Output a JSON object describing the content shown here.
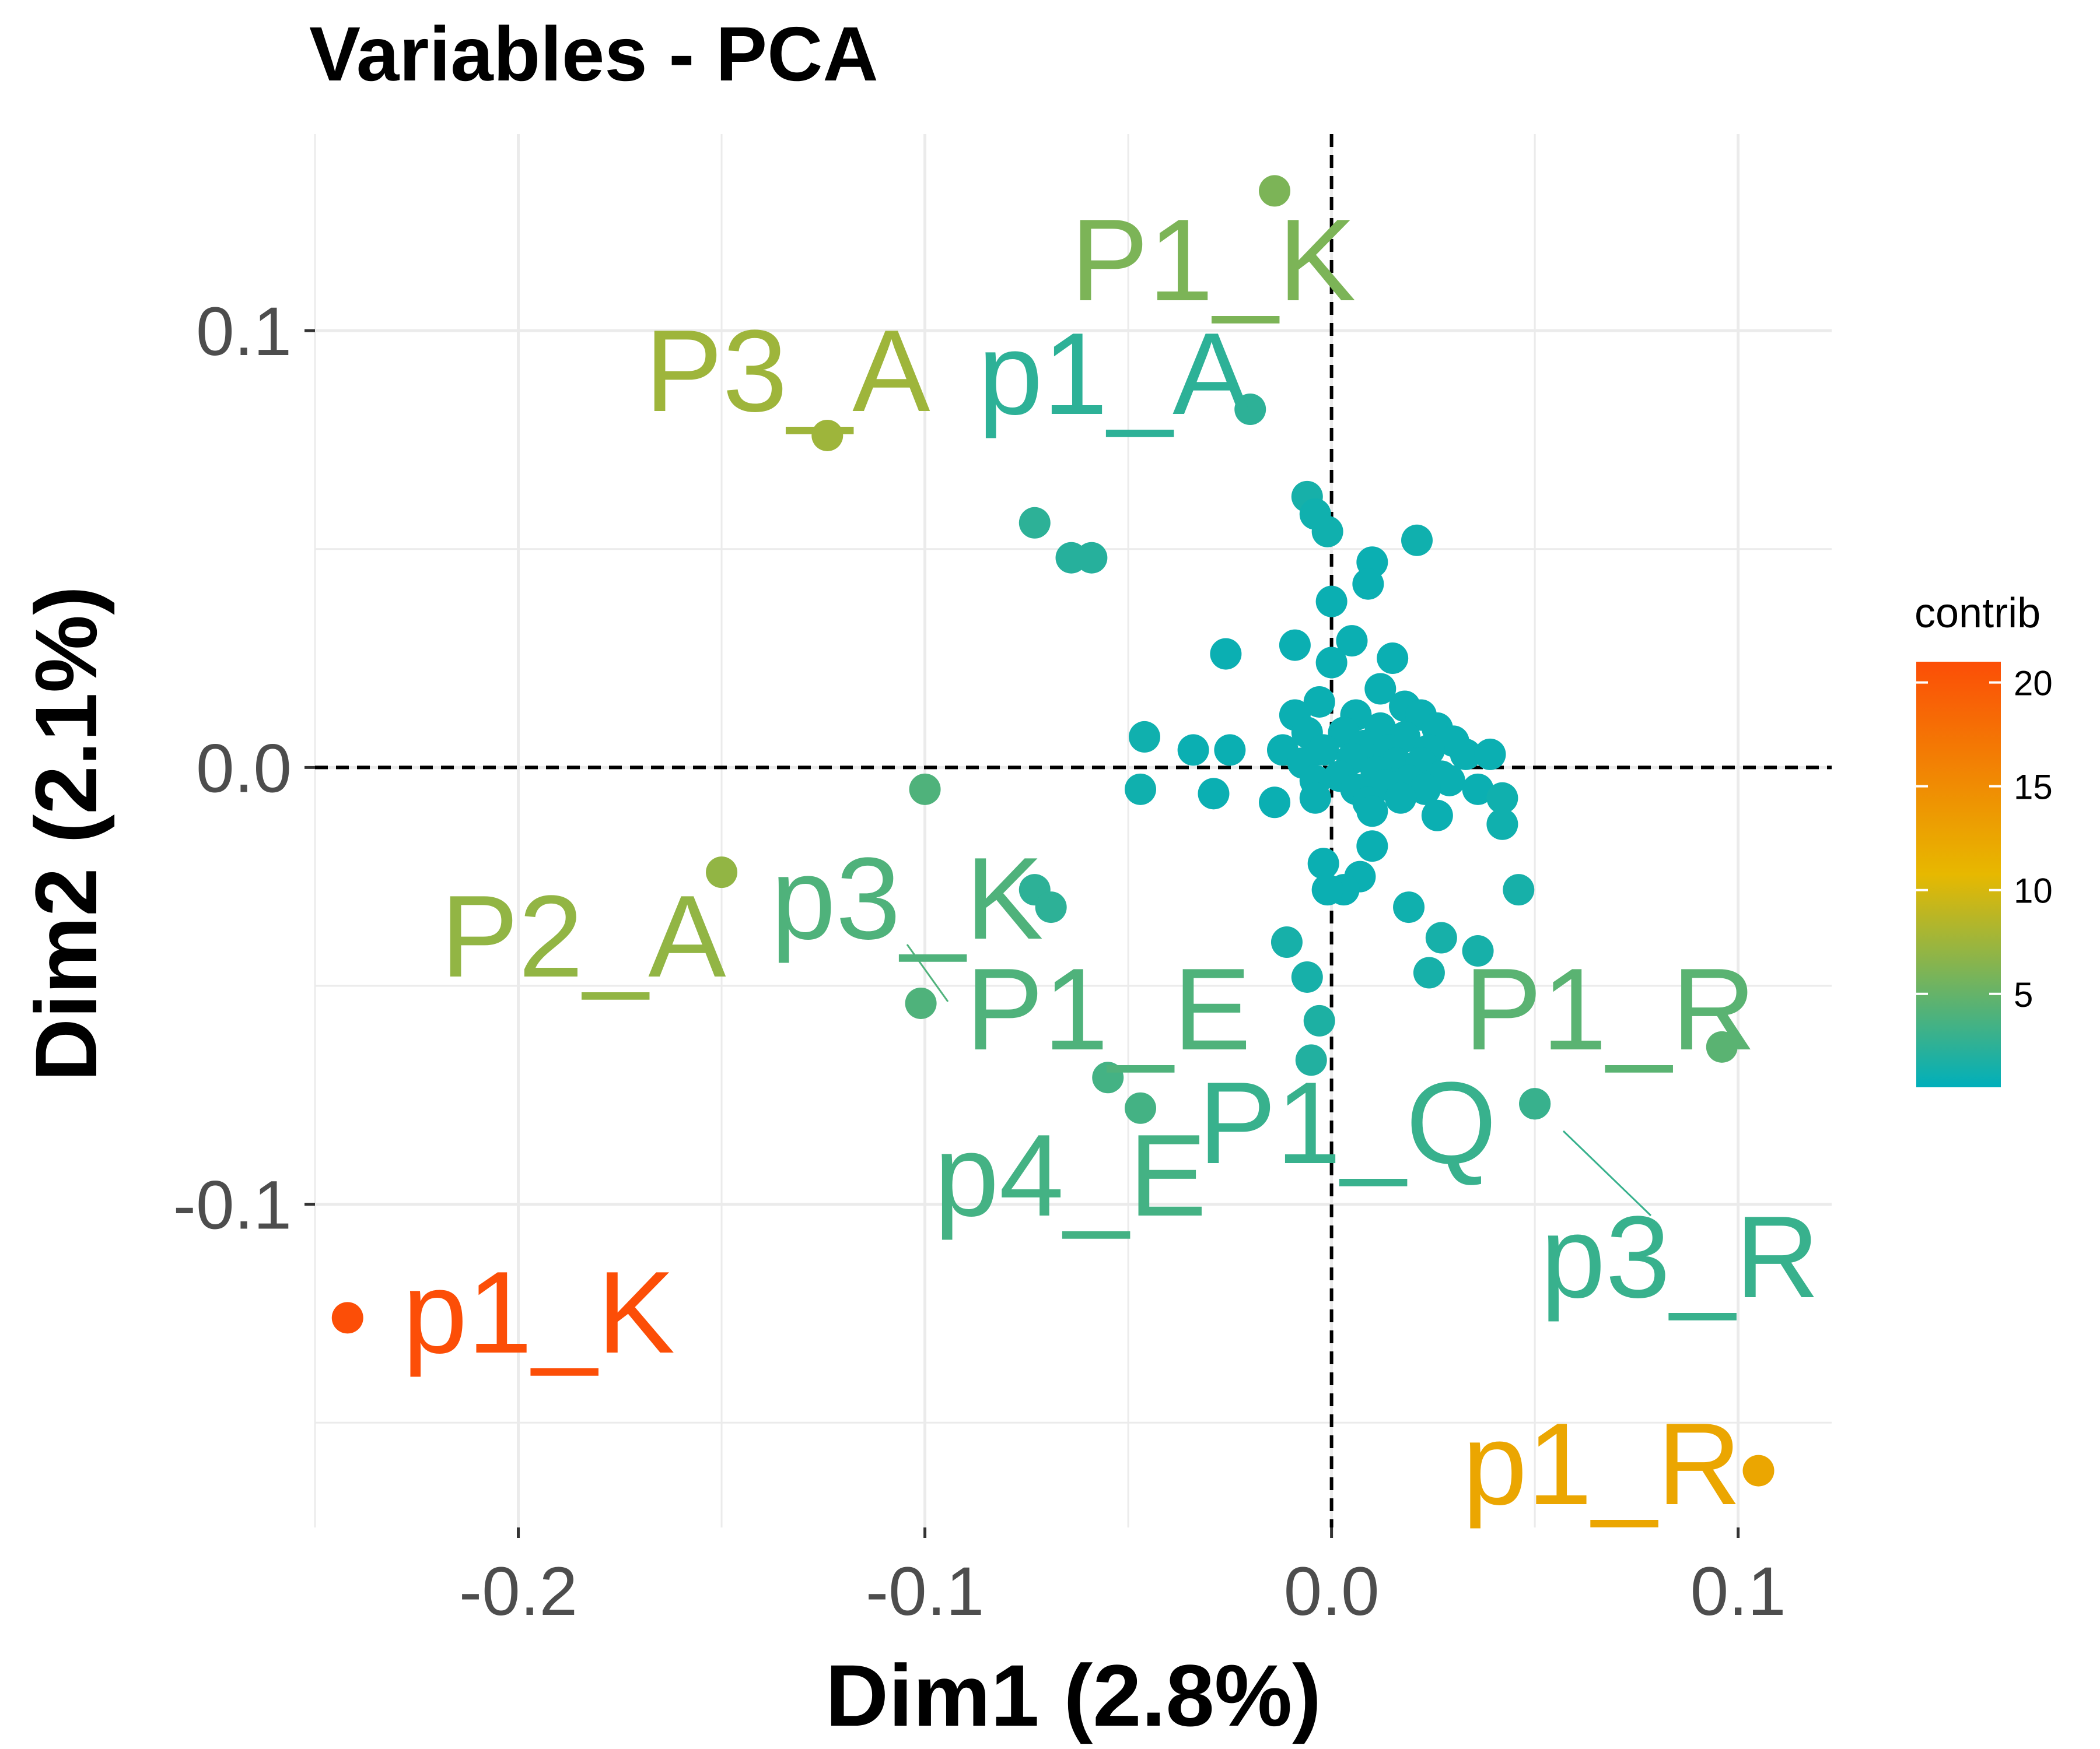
{
  "chart_data": {
    "type": "scatter",
    "title": "Variables - PCA",
    "xlabel": "Dim1 (2.8%)",
    "ylabel": "Dim2 (2.1%)",
    "xlim": [
      -0.25,
      0.123
    ],
    "ylim": [
      -0.174,
      0.145
    ],
    "x_ticks": [
      -0.2,
      -0.1,
      0.0,
      0.1
    ],
    "x_tick_labels": [
      "-0.2",
      "-0.1",
      "0.0",
      "0.1"
    ],
    "y_ticks": [
      -0.1,
      0.0,
      0.1
    ],
    "y_tick_labels": [
      "-0.1",
      "0.0",
      "0.1"
    ],
    "grid": true,
    "reference_lines": {
      "x": 0,
      "y": 0,
      "style": "dashed"
    },
    "legend": {
      "title": "contrib",
      "placement": "right",
      "range": [
        0.5,
        21
      ],
      "ticks": [
        5,
        10,
        15,
        20
      ],
      "tick_labels": [
        "5",
        "10",
        "15",
        "20"
      ],
      "gradient_colors": [
        "#00AFBB",
        "#E7B800",
        "#FC4E07"
      ]
    },
    "labeled_points": [
      {
        "label": "p1_K",
        "x": -0.242,
        "y": -0.126,
        "contrib": 21
      },
      {
        "label": "p1_R",
        "x": 0.105,
        "y": -0.161,
        "contrib": 12.5
      },
      {
        "label": "P3_A",
        "x": -0.124,
        "y": 0.076,
        "contrib": 7.5
      },
      {
        "label": "P2_A",
        "x": -0.15,
        "y": -0.024,
        "contrib": 7
      },
      {
        "label": "P1_K",
        "x": -0.014,
        "y": 0.132,
        "contrib": 6
      },
      {
        "label": "p1_A",
        "x": -0.02,
        "y": 0.082,
        "contrib": 2.5
      },
      {
        "label": "p3_K",
        "x": -0.1,
        "y": -0.005,
        "contrib": 4
      },
      {
        "label": "P1_E",
        "x": -0.101,
        "y": -0.054,
        "contrib": 4
      },
      {
        "label": "p4_E",
        "x": -0.047,
        "y": -0.078,
        "contrib": 3.5
      },
      {
        "label": "P1_R",
        "x": 0.096,
        "y": -0.064,
        "contrib": 4.5
      },
      {
        "label": "P1_Q",
        "x": 0.05,
        "y": -0.077,
        "contrib": 3
      },
      {
        "label": "p3_R",
        "x": 0.05,
        "y": -0.077,
        "contrib": 3
      }
    ],
    "other_points": [
      {
        "x": -0.073,
        "y": 0.056,
        "contrib": 2.5
      },
      {
        "x": -0.064,
        "y": 0.048,
        "contrib": 2.2
      },
      {
        "x": -0.059,
        "y": 0.048,
        "contrib": 2.2
      },
      {
        "x": -0.073,
        "y": -0.028,
        "contrib": 2.5
      },
      {
        "x": -0.069,
        "y": -0.032,
        "contrib": 2.5
      },
      {
        "x": -0.055,
        "y": -0.071,
        "contrib": 3.5
      },
      {
        "x": -0.006,
        "y": 0.062,
        "contrib": 1.5
      },
      {
        "x": -0.004,
        "y": 0.058,
        "contrib": 1.2
      },
      {
        "x": -0.001,
        "y": 0.054,
        "contrib": 1.2
      },
      {
        "x": 0.021,
        "y": 0.052,
        "contrib": 1.2
      },
      {
        "x": 0.01,
        "y": 0.047,
        "contrib": 1
      },
      {
        "x": 0.009,
        "y": 0.042,
        "contrib": 1
      },
      {
        "x": 0,
        "y": 0.038,
        "contrib": 1
      },
      {
        "x": -0.009,
        "y": 0.028,
        "contrib": 1
      },
      {
        "x": 0.005,
        "y": 0.029,
        "contrib": 1
      },
      {
        "x": -0.026,
        "y": 0.026,
        "contrib": 1
      },
      {
        "x": 0,
        "y": 0.024,
        "contrib": 1
      },
      {
        "x": 0.015,
        "y": 0.025,
        "contrib": 1
      },
      {
        "x": 0.012,
        "y": 0.018,
        "contrib": 1
      },
      {
        "x": 0.018,
        "y": 0.014,
        "contrib": 1
      },
      {
        "x": 0.022,
        "y": 0.012,
        "contrib": 1
      },
      {
        "x": 0.006,
        "y": 0.012,
        "contrib": 1
      },
      {
        "x": -0.003,
        "y": 0.015,
        "contrib": 1
      },
      {
        "x": -0.009,
        "y": 0.012,
        "contrib": 1
      },
      {
        "x": 0.012,
        "y": 0.009,
        "contrib": 1
      },
      {
        "x": 0.026,
        "y": 0.009,
        "contrib": 1
      },
      {
        "x": 0.003,
        "y": 0.008,
        "contrib": 1
      },
      {
        "x": -0.006,
        "y": 0.008,
        "contrib": 1
      },
      {
        "x": 0.018,
        "y": 0.007,
        "contrib": 1
      },
      {
        "x": 0.03,
        "y": 0.006,
        "contrib": 1
      },
      {
        "x": 0.008,
        "y": 0.005,
        "contrib": 1
      },
      {
        "x": 0.014,
        "y": 0.004,
        "contrib": 1
      },
      {
        "x": 0.024,
        "y": 0.004,
        "contrib": 1
      },
      {
        "x": -0.002,
        "y": 0.004,
        "contrib": 1
      },
      {
        "x": -0.012,
        "y": 0.004,
        "contrib": 1
      },
      {
        "x": 0.033,
        "y": 0.003,
        "contrib": 1
      },
      {
        "x": 0.039,
        "y": 0.003,
        "contrib": 1
      },
      {
        "x": -0.046,
        "y": 0.007,
        "contrib": 1.2
      },
      {
        "x": -0.034,
        "y": 0.004,
        "contrib": 1
      },
      {
        "x": -0.025,
        "y": 0.004,
        "contrib": 1
      },
      {
        "x": 0.005,
        "y": 0.002,
        "contrib": 1
      },
      {
        "x": 0.016,
        "y": 0.001,
        "contrib": 1
      },
      {
        "x": 0.022,
        "y": 0.001,
        "contrib": 1
      },
      {
        "x": -0.007,
        "y": 0.001,
        "contrib": 1
      },
      {
        "x": 0.011,
        "y": -0.001,
        "contrib": 1
      },
      {
        "x": 0.002,
        "y": -0.002,
        "contrib": 1
      },
      {
        "x": 0.027,
        "y": -0.002,
        "contrib": 1
      },
      {
        "x": 0.019,
        "y": -0.003,
        "contrib": 1
      },
      {
        "x": -0.004,
        "y": -0.003,
        "contrib": 1
      },
      {
        "x": 0.029,
        "y": -0.003,
        "contrib": 1
      },
      {
        "x": 0.013,
        "y": -0.004,
        "contrib": 1
      },
      {
        "x": 0.006,
        "y": -0.005,
        "contrib": 1
      },
      {
        "x": 0.023,
        "y": -0.005,
        "contrib": 1
      },
      {
        "x": 0.036,
        "y": -0.005,
        "contrib": 1
      },
      {
        "x": -0.047,
        "y": -0.005,
        "contrib": 1.2
      },
      {
        "x": -0.029,
        "y": -0.006,
        "contrib": 1
      },
      {
        "x": 0.042,
        "y": -0.007,
        "contrib": 1.2
      },
      {
        "x": -0.004,
        "y": -0.007,
        "contrib": 1
      },
      {
        "x": 0.017,
        "y": -0.007,
        "contrib": 1
      },
      {
        "x": 0.009,
        "y": -0.008,
        "contrib": 1
      },
      {
        "x": -0.014,
        "y": -0.008,
        "contrib": 1
      },
      {
        "x": 0.01,
        "y": -0.01,
        "contrib": 1
      },
      {
        "x": 0.026,
        "y": -0.011,
        "contrib": 1
      },
      {
        "x": 0.042,
        "y": -0.013,
        "contrib": 1.2
      },
      {
        "x": 0.01,
        "y": -0.018,
        "contrib": 1
      },
      {
        "x": -0.002,
        "y": -0.022,
        "contrib": 1
      },
      {
        "x": 0.007,
        "y": -0.025,
        "contrib": 1
      },
      {
        "x": 0.003,
        "y": -0.028,
        "contrib": 1
      },
      {
        "x": -0.001,
        "y": -0.028,
        "contrib": 1
      },
      {
        "x": 0.019,
        "y": -0.032,
        "contrib": 1.2
      },
      {
        "x": 0.046,
        "y": -0.028,
        "contrib": 1.5
      },
      {
        "x": -0.011,
        "y": -0.04,
        "contrib": 1.5
      },
      {
        "x": 0.027,
        "y": -0.039,
        "contrib": 1.5
      },
      {
        "x": 0.036,
        "y": -0.042,
        "contrib": 1.5
      },
      {
        "x": -0.006,
        "y": -0.048,
        "contrib": 1.5
      },
      {
        "x": 0.024,
        "y": -0.047,
        "contrib": 1.5
      },
      {
        "x": -0.003,
        "y": -0.058,
        "contrib": 1.8
      },
      {
        "x": -0.005,
        "y": -0.067,
        "contrib": 2
      }
    ]
  }
}
